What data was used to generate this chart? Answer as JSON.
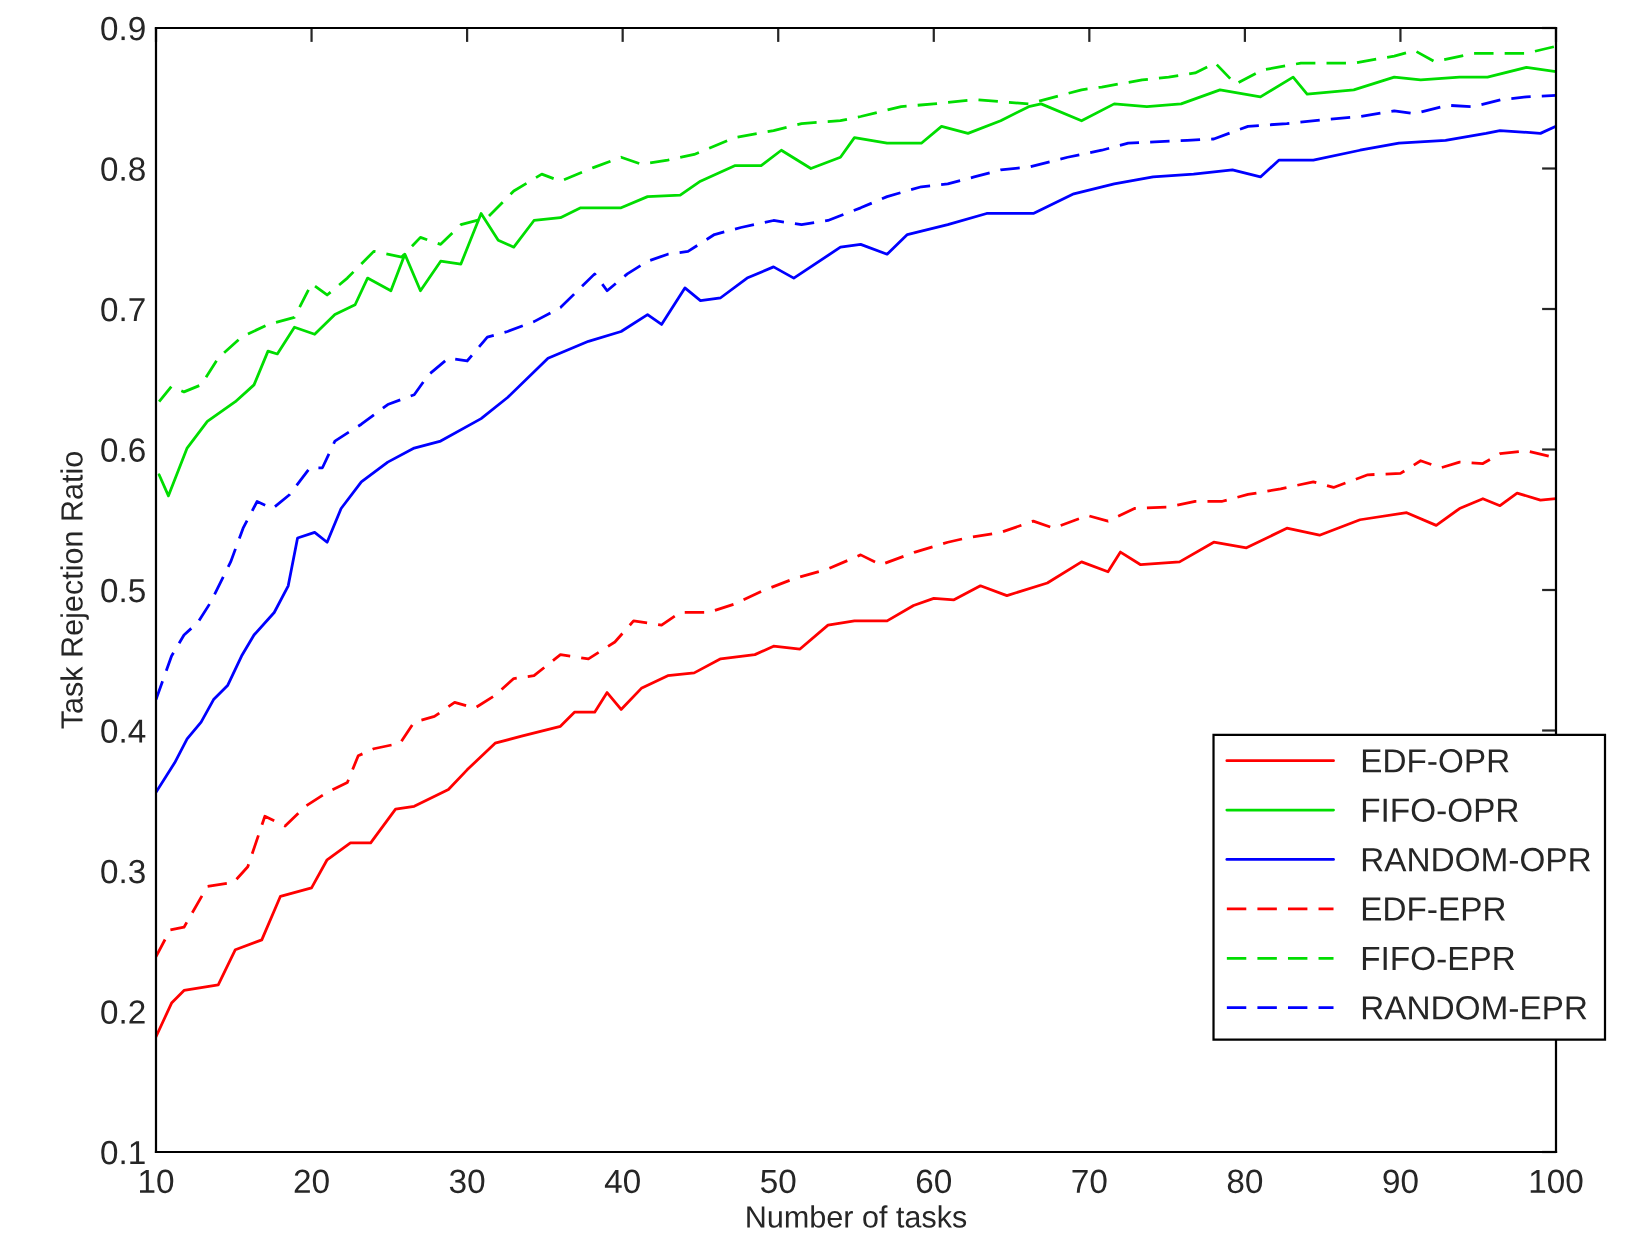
{
  "chart_data": {
    "type": "line",
    "xlabel": "Number of tasks",
    "ylabel": "Task Rejection Ratio",
    "xlim": [
      10,
      100
    ],
    "xticks": [
      10,
      20,
      30,
      40,
      50,
      60,
      70,
      80,
      90,
      100
    ],
    "ylim": [
      0.1,
      0.9
    ],
    "yticks": [
      0.1,
      0.2,
      0.3,
      0.4,
      0.5,
      0.6,
      0.7,
      0.8,
      0.9
    ],
    "grid": false,
    "legend": "lower right",
    "marker": "none",
    "series": [
      {
        "name": "EDF-OPR",
        "color": "#ff0000",
        "line_style": "solid",
        "x": [
          10,
          11,
          11.8,
          14,
          15.1,
          16.8,
          18,
          20,
          21,
          22.5,
          23.8,
          25.4,
          26.6,
          28.8,
          30,
          31.8,
          33.5,
          36,
          36.9,
          38.2,
          39,
          39.9,
          41.2,
          42.9,
          44.6,
          46.3,
          48.5,
          49.7,
          51.4,
          53.2,
          54.9,
          57,
          58.7,
          60,
          61.3,
          63,
          64.7,
          67.3,
          69.5,
          71.2,
          72,
          73.3,
          75.8,
          78,
          80.1,
          82.7,
          84.8,
          87.4,
          90.4,
          92.3,
          93.8,
          95.3,
          96.4,
          97.5,
          99,
          100
        ],
        "values": [
          0.182,
          0.206,
          0.215,
          0.219,
          0.244,
          0.251,
          0.282,
          0.288,
          0.308,
          0.32,
          0.32,
          0.344,
          0.346,
          0.358,
          0.372,
          0.391,
          0.396,
          0.403,
          0.413,
          0.413,
          0.427,
          0.415,
          0.43,
          0.439,
          0.441,
          0.451,
          0.454,
          0.46,
          0.458,
          0.475,
          0.478,
          0.478,
          0.489,
          0.494,
          0.493,
          0.503,
          0.496,
          0.505,
          0.52,
          0.513,
          0.527,
          0.518,
          0.52,
          0.534,
          0.53,
          0.544,
          0.539,
          0.55,
          0.555,
          0.546,
          0.558,
          0.565,
          0.56,
          0.569,
          0.564,
          0.565
        ]
      },
      {
        "name": "FIFO-OPR",
        "color": "#00dd00",
        "line_style": "solid",
        "x": [
          10.2,
          10.8,
          12,
          13.3,
          15.1,
          16.3,
          17.2,
          17.8,
          18.9,
          20.2,
          21.5,
          22.8,
          23.6,
          25.1,
          26,
          27,
          28.3,
          29.6,
          30.9,
          32,
          33,
          34.3,
          36,
          37.3,
          39.9,
          41.6,
          43.7,
          45,
          47.2,
          48.9,
          50.2,
          52.1,
          54,
          54.9,
          57,
          59.2,
          60.5,
          62.2,
          64.3,
          66.1,
          66.9,
          69.5,
          71.6,
          73.7,
          75.9,
          78.4,
          81,
          83.1,
          84,
          87,
          89.6,
          91.3,
          93.8,
          95.6,
          98.1,
          100
        ],
        "values": [
          0.582,
          0.567,
          0.601,
          0.62,
          0.634,
          0.646,
          0.67,
          0.668,
          0.687,
          0.682,
          0.696,
          0.703,
          0.722,
          0.713,
          0.739,
          0.713,
          0.734,
          0.732,
          0.768,
          0.749,
          0.744,
          0.763,
          0.765,
          0.772,
          0.772,
          0.78,
          0.781,
          0.791,
          0.802,
          0.802,
          0.813,
          0.8,
          0.808,
          0.822,
          0.818,
          0.818,
          0.83,
          0.825,
          0.834,
          0.844,
          0.846,
          0.834,
          0.846,
          0.844,
          0.846,
          0.856,
          0.851,
          0.865,
          0.853,
          0.856,
          0.865,
          0.863,
          0.865,
          0.865,
          0.872,
          0.869
        ]
      },
      {
        "name": "RANDOM-OPR",
        "color": "#0000ff",
        "line_style": "solid",
        "x": [
          10,
          11.2,
          12,
          12.9,
          13.7,
          14.6,
          15.5,
          16.3,
          17.6,
          18.5,
          19.1,
          20.2,
          21,
          21.9,
          23.2,
          24.9,
          26.6,
          28.3,
          30.9,
          32.6,
          35.2,
          37.8,
          39.9,
          41.6,
          42.5,
          44,
          45,
          46.3,
          48,
          49.7,
          51,
          54,
          55.3,
          57,
          58.3,
          60.9,
          63.4,
          66.4,
          69,
          71.6,
          74.1,
          76.7,
          79.2,
          81,
          82.2,
          84.4,
          87.4,
          89.9,
          92.9,
          95.5,
          96.4,
          99,
          100
        ],
        "values": [
          0.356,
          0.377,
          0.394,
          0.406,
          0.422,
          0.432,
          0.453,
          0.468,
          0.484,
          0.503,
          0.537,
          0.541,
          0.534,
          0.558,
          0.577,
          0.591,
          0.601,
          0.606,
          0.622,
          0.637,
          0.665,
          0.677,
          0.684,
          0.696,
          0.689,
          0.715,
          0.706,
          0.708,
          0.722,
          0.73,
          0.722,
          0.744,
          0.746,
          0.739,
          0.753,
          0.76,
          0.768,
          0.768,
          0.782,
          0.789,
          0.794,
          0.796,
          0.799,
          0.794,
          0.806,
          0.806,
          0.813,
          0.818,
          0.82,
          0.825,
          0.827,
          0.825,
          0.83
        ]
      },
      {
        "name": "EDF-EPR",
        "color": "#ff0000",
        "line_style": "dashed",
        "x": [
          10,
          10.9,
          11.8,
          13.3,
          15,
          15.9,
          17,
          18.3,
          19.6,
          21,
          22.3,
          23,
          24,
          25.7,
          26.6,
          27.9,
          29.2,
          30.5,
          31.8,
          33,
          34.3,
          36,
          37.8,
          39.5,
          40.7,
          42.5,
          43.7,
          45.5,
          47.2,
          48.9,
          51,
          53.2,
          55.3,
          56.6,
          58.8,
          60.9,
          62.1,
          64.3,
          66.4,
          67.7,
          69.9,
          71.2,
          72.9,
          75,
          76.8,
          78.5,
          80.2,
          82.3,
          84.4,
          85.7,
          87.9,
          90,
          91.3,
          92.6,
          93.8,
          95.3,
          96.4,
          98.1,
          100
        ],
        "values": [
          0.239,
          0.258,
          0.26,
          0.289,
          0.292,
          0.303,
          0.339,
          0.332,
          0.346,
          0.356,
          0.363,
          0.382,
          0.387,
          0.391,
          0.406,
          0.41,
          0.42,
          0.416,
          0.425,
          0.437,
          0.439,
          0.454,
          0.451,
          0.463,
          0.478,
          0.475,
          0.484,
          0.484,
          0.49,
          0.499,
          0.508,
          0.515,
          0.525,
          0.518,
          0.527,
          0.534,
          0.537,
          0.541,
          0.549,
          0.544,
          0.553,
          0.549,
          0.558,
          0.559,
          0.563,
          0.563,
          0.568,
          0.572,
          0.577,
          0.573,
          0.582,
          0.583,
          0.592,
          0.587,
          0.591,
          0.59,
          0.597,
          0.599,
          0.594
        ]
      },
      {
        "name": "FIFO-EPR",
        "color": "#00dd00",
        "line_style": "dashed",
        "x": [
          10.2,
          11,
          11.8,
          12.9,
          14,
          15.5,
          17.2,
          18.9,
          20,
          21,
          22.3,
          24,
          25.8,
          27,
          28.3,
          29.6,
          31.3,
          33,
          34.8,
          36,
          38.2,
          39.9,
          41.2,
          42.9,
          44.6,
          47.2,
          49.7,
          51.5,
          54,
          55.3,
          57.9,
          60,
          62.6,
          66.1,
          69.5,
          70.8,
          73.4,
          75.1,
          76.8,
          78.1,
          79.4,
          81.1,
          83.6,
          87,
          89.6,
          90.9,
          92.2,
          94.7,
          96.5,
          98.1,
          100
        ],
        "values": [
          0.634,
          0.645,
          0.641,
          0.646,
          0.665,
          0.68,
          0.689,
          0.694,
          0.718,
          0.71,
          0.722,
          0.741,
          0.737,
          0.751,
          0.746,
          0.76,
          0.765,
          0.784,
          0.796,
          0.791,
          0.801,
          0.808,
          0.803,
          0.806,
          0.81,
          0.822,
          0.827,
          0.832,
          0.834,
          0.837,
          0.844,
          0.846,
          0.849,
          0.846,
          0.856,
          0.858,
          0.863,
          0.865,
          0.868,
          0.875,
          0.86,
          0.87,
          0.875,
          0.875,
          0.88,
          0.884,
          0.876,
          0.882,
          0.882,
          0.882,
          0.887
        ]
      },
      {
        "name": "RANDOM-EPR",
        "color": "#0000ff",
        "line_style": "dashed",
        "x": [
          10,
          11,
          11.8,
          12.7,
          13.5,
          14.8,
          15.6,
          16.5,
          17.5,
          18.6,
          19.9,
          20.7,
          21.5,
          23.2,
          24.9,
          26.6,
          27.5,
          28.8,
          30,
          31.3,
          32.6,
          34.3,
          36,
          38.2,
          39,
          40.3,
          41.6,
          42.9,
          44.2,
          45.9,
          47.6,
          49.7,
          51.5,
          53.2,
          55.3,
          57,
          59.2,
          60.9,
          62.6,
          64.3,
          66.1,
          68.6,
          70.8,
          72.5,
          74.2,
          76.3,
          78,
          80.2,
          82.7,
          85.3,
          87.4,
          89.6,
          90.9,
          93,
          94.7,
          96.5,
          98.1,
          100
        ],
        "values": [
          0.422,
          0.453,
          0.468,
          0.477,
          0.491,
          0.52,
          0.544,
          0.563,
          0.558,
          0.568,
          0.587,
          0.587,
          0.606,
          0.618,
          0.632,
          0.639,
          0.653,
          0.665,
          0.663,
          0.68,
          0.684,
          0.691,
          0.701,
          0.725,
          0.713,
          0.725,
          0.734,
          0.739,
          0.741,
          0.753,
          0.758,
          0.763,
          0.76,
          0.763,
          0.772,
          0.78,
          0.787,
          0.789,
          0.794,
          0.799,
          0.801,
          0.808,
          0.813,
          0.818,
          0.819,
          0.82,
          0.821,
          0.83,
          0.832,
          0.835,
          0.837,
          0.841,
          0.839,
          0.845,
          0.844,
          0.849,
          0.851,
          0.852
        ]
      }
    ]
  }
}
